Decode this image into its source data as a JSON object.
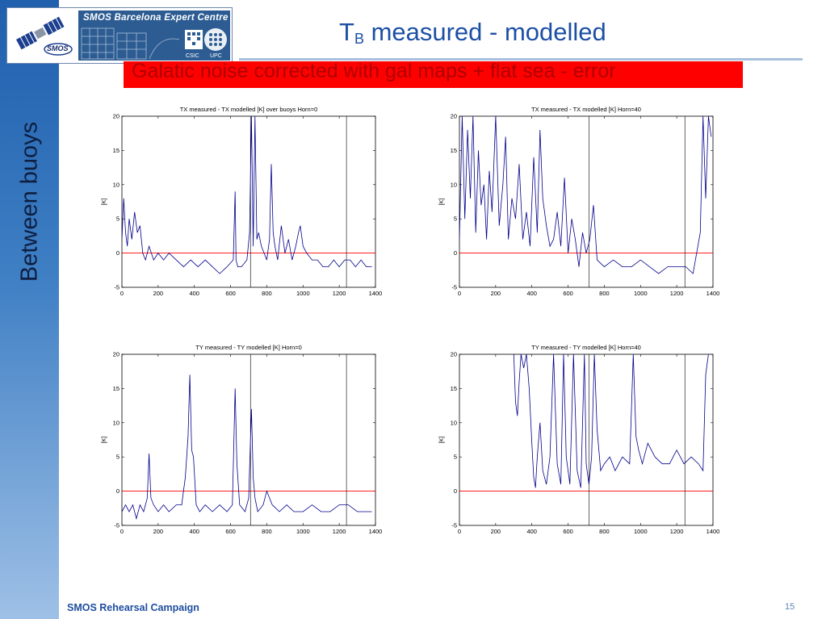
{
  "slide": {
    "title_main": "T",
    "title_sub": "B",
    "title_rest": " measured - modelled",
    "banner": "Galatic noise corrected with gal maps + flat sea - error",
    "sidebar_label": "Between  buoys",
    "footer": "SMOS Rehearsal Campaign",
    "page_number": "15",
    "accent_color": "#1c4fa6",
    "banner_color": "#ff0000"
  },
  "logo": {
    "title": "SMOS Barcelona Expert Centre",
    "smos_label": "SMOS",
    "csic_label": "CSIC",
    "upc_label": "UPC"
  },
  "chart_data": [
    {
      "type": "line",
      "title": "TX measured - TX modelled [K] over buoys Horn=0",
      "xlabel": "",
      "ylabel": "[K]",
      "xlim": [
        0,
        1400
      ],
      "ylim": [
        -5,
        20
      ],
      "xticks": [
        "0",
        "200",
        "400",
        "600",
        "800",
        "1000",
        "1200",
        "1400"
      ],
      "yticks": [
        "-5",
        "0",
        "5",
        "10",
        "15",
        "20"
      ],
      "zero_line_color": "#ff0000",
      "series_color": "#00008b",
      "vlines": [
        710,
        1240
      ],
      "series": [
        {
          "x": [
            0,
            10,
            20,
            30,
            40,
            55,
            70,
            85,
            100,
            115,
            130,
            150,
            175,
            200,
            230,
            260,
            300,
            340,
            380,
            420,
            460,
            500,
            540,
            580,
            615,
            625,
            630,
            640,
            660,
            690,
            705,
            715,
            725,
            735,
            745,
            755,
            770,
            785,
            800,
            815,
            825,
            835,
            845,
            860,
            880,
            900,
            920,
            940,
            960,
            975,
            985,
            1000,
            1020,
            1050,
            1080,
            1110,
            1140,
            1170,
            1200,
            1230,
            1260,
            1290,
            1320,
            1350,
            1380
          ],
          "y": [
            2,
            8,
            3,
            1,
            5,
            2,
            6,
            3,
            4,
            0,
            -1,
            1,
            -1,
            0,
            -1,
            0,
            -1,
            -2,
            -1,
            -2,
            -1,
            -2,
            -3,
            -2,
            -1,
            9,
            -1,
            -2,
            -2,
            -1,
            3,
            20,
            1,
            20,
            2,
            3,
            1,
            0,
            -1,
            2,
            13,
            3,
            1,
            -1,
            4,
            0,
            2,
            -1,
            1,
            3,
            4,
            1,
            0,
            -1,
            -1,
            -2,
            -2,
            -1,
            -2,
            -1,
            -1,
            -2,
            -1,
            -2,
            -2
          ]
        }
      ]
    },
    {
      "type": "line",
      "title": "TX measured - TX modelled [K] Horn=40",
      "xlabel": "",
      "ylabel": "[K]",
      "xlim": [
        0,
        1400
      ],
      "ylim": [
        -5,
        20
      ],
      "xticks": [
        "0",
        "200",
        "400",
        "600",
        "800",
        "1000",
        "1200",
        "1400"
      ],
      "yticks": [
        "-5",
        "0",
        "5",
        "10",
        "15",
        "20"
      ],
      "zero_line_color": "#ff0000",
      "series_color": "#00008b",
      "vlines": [
        715,
        1245
      ],
      "series": [
        {
          "x": [
            0,
            15,
            30,
            45,
            60,
            75,
            90,
            105,
            120,
            135,
            150,
            165,
            180,
            200,
            220,
            240,
            255,
            270,
            290,
            310,
            330,
            350,
            370,
            390,
            410,
            430,
            445,
            460,
            480,
            500,
            520,
            540,
            560,
            580,
            600,
            620,
            640,
            660,
            680,
            700,
            720,
            740,
            760,
            800,
            850,
            900,
            950,
            1000,
            1050,
            1100,
            1150,
            1200,
            1250,
            1290,
            1310,
            1330,
            1345,
            1360,
            1375,
            1390
          ],
          "y": [
            2,
            20,
            5,
            18,
            8,
            20,
            3,
            15,
            7,
            10,
            2,
            12,
            6,
            20,
            4,
            10,
            17,
            2,
            8,
            5,
            13,
            2,
            6,
            1,
            14,
            3,
            18,
            8,
            4,
            1,
            2,
            6,
            1,
            11,
            0,
            5,
            2,
            -2,
            3,
            0,
            2,
            7,
            -1,
            -2,
            -1,
            -2,
            -2,
            -1,
            -2,
            -3,
            -2,
            -2,
            -2,
            -3,
            0,
            3,
            20,
            8,
            20,
            17
          ]
        }
      ]
    },
    {
      "type": "line",
      "title": "TY measured - TY modelled [K] Horn=0",
      "xlabel": "",
      "ylabel": "[K]",
      "xlim": [
        0,
        1400
      ],
      "ylim": [
        -5,
        20
      ],
      "xticks": [
        "0",
        "200",
        "400",
        "600",
        "800",
        "1000",
        "1200",
        "1400"
      ],
      "yticks": [
        "-5",
        "0",
        "5",
        "10",
        "15",
        "20"
      ],
      "zero_line_color": "#ff0000",
      "series_color": "#00008b",
      "vlines": [
        710,
        1240
      ],
      "series": [
        {
          "x": [
            0,
            20,
            40,
            60,
            80,
            100,
            120,
            140,
            150,
            160,
            175,
            200,
            230,
            260,
            300,
            330,
            350,
            365,
            375,
            385,
            395,
            410,
            430,
            460,
            500,
            540,
            580,
            610,
            625,
            635,
            650,
            680,
            700,
            715,
            725,
            735,
            750,
            780,
            800,
            830,
            870,
            910,
            950,
            1000,
            1050,
            1100,
            1150,
            1200,
            1250,
            1300,
            1350,
            1380
          ],
          "y": [
            -3,
            -2,
            -3,
            -2,
            -4,
            -2,
            -3,
            -1,
            5.5,
            -1,
            -2,
            -3,
            -2,
            -3,
            -2,
            -2,
            2,
            8,
            17,
            6,
            5,
            -2,
            -3,
            -2,
            -3,
            -2,
            -3,
            -2,
            15,
            4,
            -2,
            -3,
            -1,
            12,
            2,
            -1,
            -3,
            -2,
            0,
            -2,
            -3,
            -2,
            -3,
            -3,
            -2,
            -3,
            -3,
            -2,
            -2,
            -3,
            -3,
            -3
          ]
        }
      ]
    },
    {
      "type": "line",
      "title": "TY measured - TY modelled [K] Horn=40",
      "xlabel": "",
      "ylabel": "[K]",
      "xlim": [
        0,
        1400
      ],
      "ylim": [
        -5,
        20
      ],
      "xticks": [
        "0",
        "200",
        "400",
        "600",
        "800",
        "1000",
        "1200",
        "1400"
      ],
      "yticks": [
        "-5",
        "0",
        "5",
        "10",
        "15",
        "20"
      ],
      "zero_line_color": "#ff0000",
      "series_color": "#00008b",
      "vlines": [
        715,
        1245
      ],
      "series": [
        {
          "x": [
            300,
            310,
            320,
            330,
            340,
            355,
            370,
            385,
            400,
            410,
            420,
            430,
            445,
            460,
            480,
            500,
            520,
            540,
            560,
            575,
            590,
            610,
            630,
            650,
            670,
            690,
            700,
            715,
            730,
            745,
            760,
            780,
            800,
            830,
            860,
            900,
            940,
            960,
            975,
            990,
            1010,
            1040,
            1080,
            1120,
            1160,
            1200,
            1240,
            1280,
            1320,
            1345,
            1360,
            1375
          ],
          "y": [
            20,
            13,
            11,
            16,
            20,
            18,
            20,
            15,
            7,
            2,
            0.5,
            5,
            10,
            3,
            1,
            5,
            20,
            4,
            1,
            20,
            5,
            1,
            20,
            3,
            0.5,
            20,
            4,
            1,
            5,
            20,
            9,
            3,
            4,
            5,
            3,
            5,
            4,
            20,
            8,
            6,
            4,
            7,
            5,
            4,
            4,
            6,
            4,
            5,
            4,
            3,
            17,
            20
          ]
        }
      ]
    }
  ]
}
